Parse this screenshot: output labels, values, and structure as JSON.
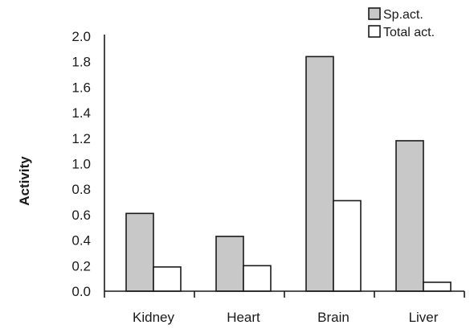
{
  "chart_data": {
    "type": "bar",
    "title": "",
    "xlabel": "",
    "ylabel": "Activity",
    "ylim": [
      0,
      2.0
    ],
    "yticks": [
      "0.0",
      "0.2",
      "0.4",
      "0.6",
      "0.8",
      "1.0",
      "1.2",
      "1.4",
      "1.6",
      "1.8",
      "2.0"
    ],
    "categories": [
      "Kidney",
      "Heart",
      "Brain",
      "Liver"
    ],
    "series": [
      {
        "name": "Sp.act.",
        "values": [
          0.61,
          0.43,
          1.84,
          1.18
        ],
        "fill": "#c8c8c8"
      },
      {
        "name": "Total act.",
        "values": [
          0.19,
          0.2,
          0.71,
          0.07
        ],
        "fill": "#ffffff"
      }
    ],
    "grid": false,
    "legend": "top-right"
  }
}
